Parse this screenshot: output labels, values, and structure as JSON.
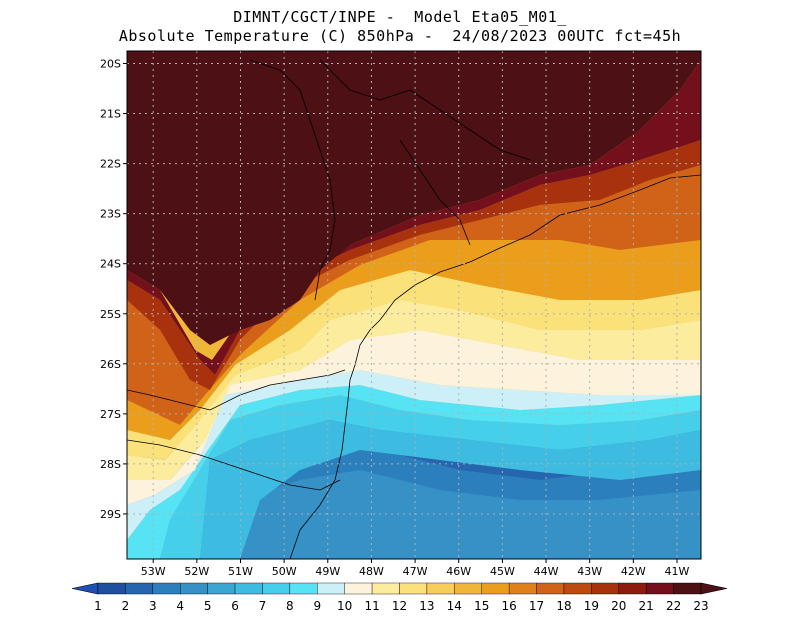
{
  "title": {
    "line1": "DIMNT/CGCT/INPE -  Model Eta05_M01_",
    "line2": "Absolute Temperature (C) 850hPa -  24/08/2023 00UTC fct=45h"
  },
  "map": {
    "lon_range": [
      -53.6,
      -40.45
    ],
    "lat_range": [
      -29.9,
      -19.75
    ],
    "lat_labels": [
      "20S",
      "21S",
      "22S",
      "23S",
      "24S",
      "25S",
      "26S",
      "27S",
      "28S",
      "29S"
    ],
    "lat_values": [
      -20,
      -21,
      -22,
      -23,
      -24,
      -25,
      -26,
      -27,
      -28,
      -29
    ],
    "lon_labels": [
      "53W",
      "52W",
      "51W",
      "50W",
      "49W",
      "48W",
      "47W",
      "46W",
      "45W",
      "44W",
      "43W",
      "42W",
      "41W"
    ],
    "lon_values": [
      -53,
      -52,
      -51,
      -50,
      -49,
      -48,
      -47,
      -46,
      -45,
      -44,
      -43,
      -42,
      -41
    ],
    "grid": "dotted"
  },
  "colorbar": {
    "labels": [
      "1",
      "2",
      "3",
      "4",
      "5",
      "6",
      "7",
      "8",
      "9",
      "10",
      "11",
      "12",
      "13",
      "14",
      "15",
      "16",
      "17",
      "18",
      "19",
      "20",
      "21",
      "22",
      "23"
    ],
    "colors": [
      "#1a3b8e",
      "#1f4f9e",
      "#2566ae",
      "#2c7fbd",
      "#3692c6",
      "#3aa6d2",
      "#3dbbe0",
      "#45cfea",
      "#56e4f5",
      "#cdeff8",
      "#fdf3dd",
      "#fcec9e",
      "#fbe17a",
      "#f7ce5a",
      "#f0b63a",
      "#eb9e1c",
      "#e0801b",
      "#d06318",
      "#bf4a10",
      "#a8320d",
      "#8e1b0d",
      "#74101b",
      "#4c1015"
    ],
    "under_color": "#1e4fb5",
    "over_color": "#4c1015"
  },
  "regions": {
    "hot": "#4c1015",
    "dark_red": "#74101b",
    "red": "#a8320d",
    "orange_dark": "#d06318",
    "orange": "#eb9e1c",
    "gold": "#f0b63a",
    "yellow": "#fbe17a",
    "pale_yellow": "#fcec9e",
    "cream": "#fdf3dd",
    "pale_cyan": "#cdeff8",
    "cyan": "#56e4f5",
    "light_blue": "#45cfea",
    "sky": "#3dbbe0",
    "mid_blue": "#3692c6",
    "blue": "#2c7fbd",
    "deep_blue": "#2566ae"
  }
}
